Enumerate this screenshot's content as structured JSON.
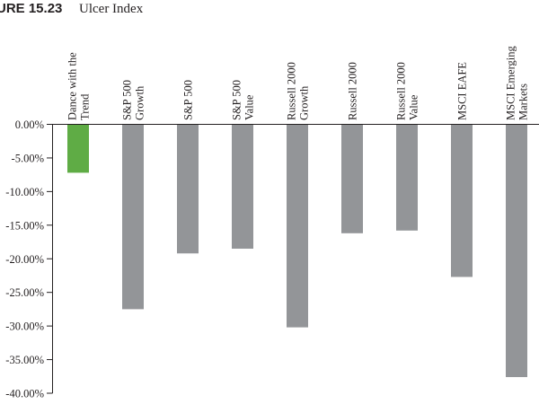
{
  "figure": {
    "number": "URE 15.23",
    "title": "Ulcer Index"
  },
  "colors": {
    "highlight": "#5fac45",
    "bar": "#939598",
    "axis": "#231f20"
  },
  "chart_data": {
    "type": "bar",
    "title": "Ulcer Index",
    "xlabel": "",
    "ylabel": "",
    "ylim": [
      -40,
      0
    ],
    "yticks": [
      0,
      -5,
      -10,
      -15,
      -20,
      -25,
      -30,
      -35,
      -40
    ],
    "ytick_labels": [
      "0.00%",
      "-5.00%",
      "-10.00%",
      "-15.00%",
      "-20.00%",
      "-25.00%",
      "-30.00%",
      "-35.00%",
      "-40.00%"
    ],
    "grid": false,
    "categories": [
      [
        "Dance with the",
        "Trend"
      ],
      [
        "S&P 500",
        "Growth"
      ],
      [
        "S&P 500"
      ],
      [
        "S&P 500",
        "Value"
      ],
      [
        "Russell 2000",
        "Growth"
      ],
      [
        "Russell 2000"
      ],
      [
        "Russell 2000",
        "Value"
      ],
      [
        "MSCI EAFE"
      ],
      [
        "MSCI Emerging",
        "Markets"
      ]
    ],
    "values": [
      -7.2,
      -27.5,
      -19.2,
      -18.5,
      -30.2,
      -16.2,
      -15.8,
      -22.7,
      -37.6
    ],
    "highlight_index": 0
  }
}
